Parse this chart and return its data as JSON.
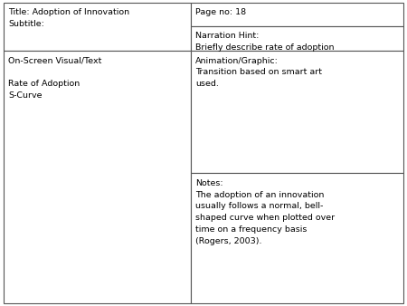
{
  "background_color": "#ffffff",
  "border_color": "#555555",
  "top_left_cell": {
    "line1": "Title: Adoption of Innovation",
    "line2": "Subtitle:"
  },
  "top_right_top_cell": {
    "text": "Page no: 18"
  },
  "top_right_bottom_cell": {
    "line1": "Narration Hint:",
    "line2": "Briefly describe rate of adoption"
  },
  "bottom_left_cell": {
    "line1": "On-Screen Visual/Text",
    "line2": "",
    "line3": "Rate of Adoption",
    "line4": "S-Curve"
  },
  "bottom_right_top_cell": {
    "line1": "Animation/Graphic:",
    "line2": "Transition based on smart art",
    "line3": "used."
  },
  "bottom_right_bottom_cell": {
    "line1": "Notes:",
    "line2": "The adoption of an innovation",
    "line3": "usually follows a normal, bell-",
    "line4": "shaped curve when plotted over",
    "line5": "time on a frequency basis",
    "line6": "(Rogers, 2003)."
  },
  "font_size": 6.8,
  "font_family": "DejaVu Sans",
  "col_split": 0.468,
  "header_split": 0.165,
  "page_no_split": 0.085,
  "anim_split": 0.565
}
